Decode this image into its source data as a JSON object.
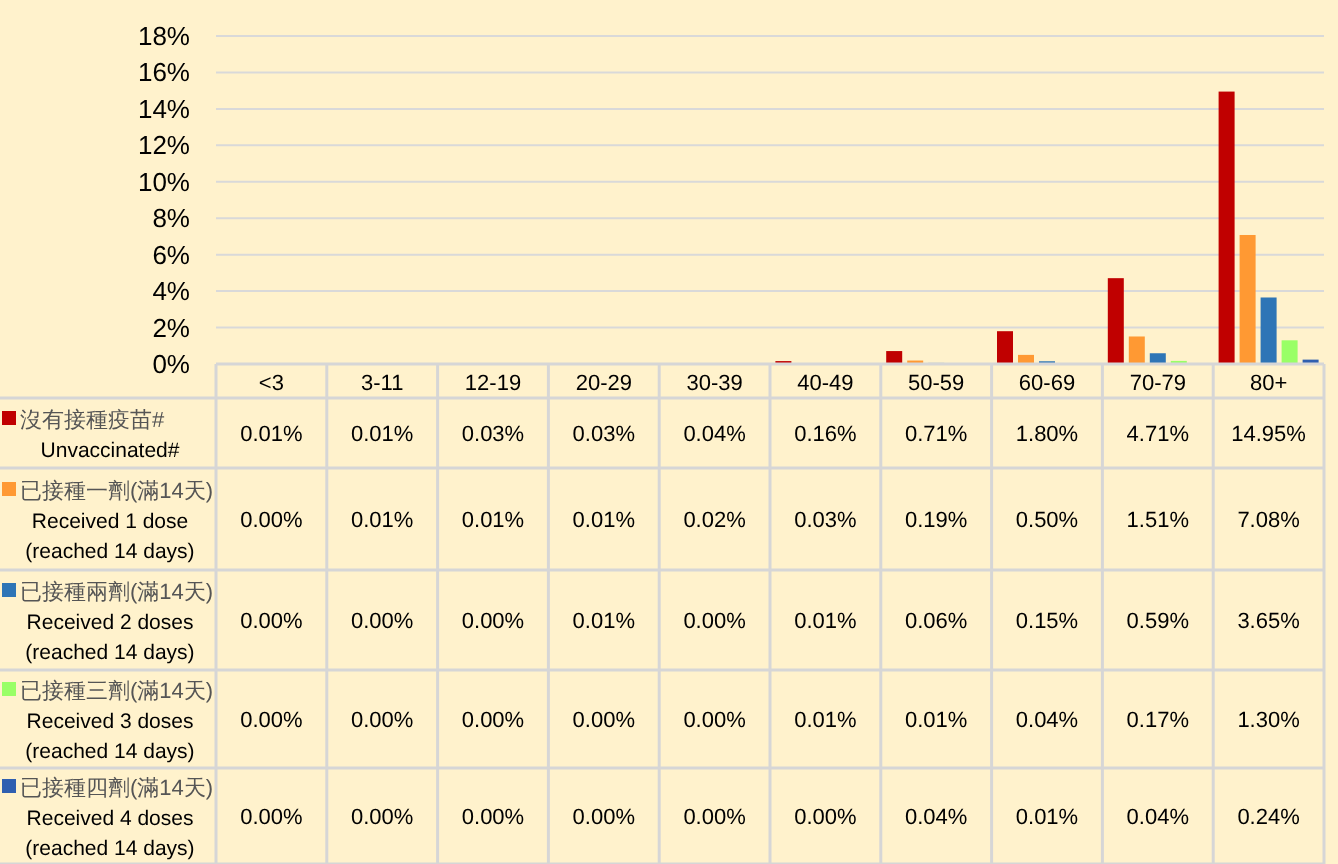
{
  "chart_data": {
    "type": "bar",
    "categories": [
      "<3",
      "3-11",
      "12-19",
      "20-29",
      "30-39",
      "40-49",
      "50-59",
      "60-69",
      "70-79",
      "80+"
    ],
    "series": [
      {
        "name": "沒有接種疫苗#\nUnvaccinated#",
        "color": "#c00000",
        "values": [
          0.01,
          0.01,
          0.03,
          0.03,
          0.04,
          0.16,
          0.71,
          1.8,
          4.71,
          14.95
        ],
        "value_labels": [
          "0.01%",
          "0.01%",
          "0.03%",
          "0.03%",
          "0.04%",
          "0.16%",
          "0.71%",
          "1.80%",
          "4.71%",
          "14.95%"
        ]
      },
      {
        "name": "已接種一劑(滿14天)\nReceived 1 dose\n(reached 14 days)",
        "color": "#ff9933",
        "values": [
          0.0,
          0.01,
          0.01,
          0.01,
          0.02,
          0.03,
          0.19,
          0.5,
          1.51,
          7.08
        ],
        "value_labels": [
          "0.00%",
          "0.01%",
          "0.01%",
          "0.01%",
          "0.02%",
          "0.03%",
          "0.19%",
          "0.50%",
          "1.51%",
          "7.08%"
        ]
      },
      {
        "name": "已接種兩劑(滿14天)\nReceived 2 doses\n(reached 14 days)",
        "color": "#2e75b6",
        "values": [
          0.0,
          0.0,
          0.0,
          0.01,
          0.0,
          0.01,
          0.06,
          0.15,
          0.59,
          3.65
        ],
        "value_labels": [
          "0.00%",
          "0.00%",
          "0.00%",
          "0.01%",
          "0.00%",
          "0.01%",
          "0.06%",
          "0.15%",
          "0.59%",
          "3.65%"
        ]
      },
      {
        "name": "已接種三劑(滿14天)\nReceived 3 doses\n(reached 14 days)",
        "color": "#99ff66",
        "values": [
          0.0,
          0.0,
          0.0,
          0.0,
          0.0,
          0.01,
          0.01,
          0.04,
          0.17,
          1.3
        ],
        "value_labels": [
          "0.00%",
          "0.00%",
          "0.00%",
          "0.00%",
          "0.00%",
          "0.01%",
          "0.01%",
          "0.04%",
          "0.17%",
          "1.30%"
        ]
      },
      {
        "name": "已接種四劑(滿14天)\nReceived 4 doses\n(reached 14 days)",
        "color": "#2f5fb0",
        "values": [
          0.0,
          0.0,
          0.0,
          0.0,
          0.0,
          0.0,
          0.04,
          0.01,
          0.04,
          0.24
        ],
        "value_labels": [
          "0.00%",
          "0.00%",
          "0.00%",
          "0.00%",
          "0.00%",
          "0.00%",
          "0.04%",
          "0.01%",
          "0.04%",
          "0.24%"
        ]
      }
    ],
    "ylim": [
      0,
      18
    ],
    "yticks": [
      {
        "value": 0,
        "label": "0%"
      },
      {
        "value": 2,
        "label": "2%"
      },
      {
        "value": 4,
        "label": "4%"
      },
      {
        "value": 6,
        "label": "6%"
      },
      {
        "value": 8,
        "label": "8%"
      },
      {
        "value": 10,
        "label": "10%"
      },
      {
        "value": 12,
        "label": "12%"
      },
      {
        "value": 14,
        "label": "14%"
      },
      {
        "value": 16,
        "label": "16%"
      },
      {
        "value": 18,
        "label": "18%"
      }
    ],
    "grid": "y",
    "legend": "bottom"
  }
}
